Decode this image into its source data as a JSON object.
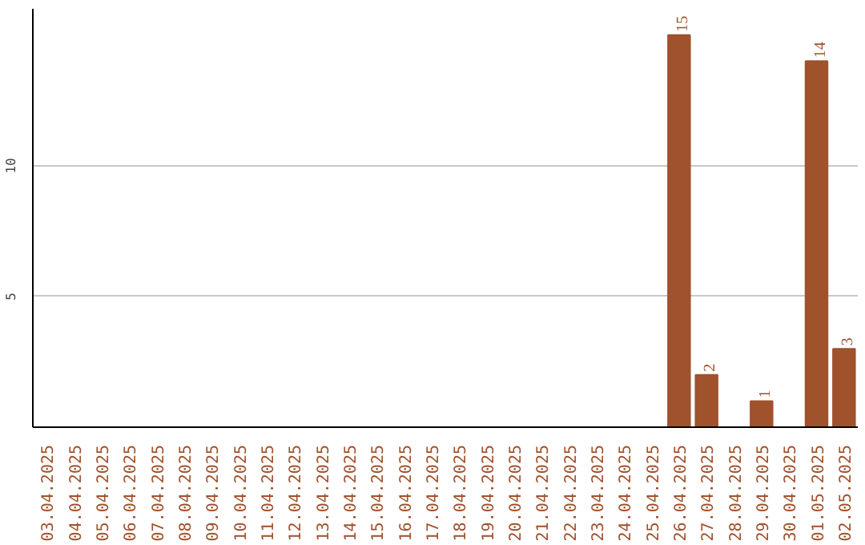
{
  "chart_data": {
    "type": "bar",
    "categories": [
      "03.04.2025",
      "04.04.2025",
      "05.04.2025",
      "06.04.2025",
      "07.04.2025",
      "08.04.2025",
      "09.04.2025",
      "10.04.2025",
      "11.04.2025",
      "12.04.2025",
      "13.04.2025",
      "14.04.2025",
      "15.04.2025",
      "16.04.2025",
      "17.04.2025",
      "18.04.2025",
      "19.04.2025",
      "20.04.2025",
      "21.04.2025",
      "22.04.2025",
      "23.04.2025",
      "24.04.2025",
      "25.04.2025",
      "26.04.2025",
      "27.04.2025",
      "28.04.2025",
      "29.04.2025",
      "30.04.2025",
      "01.05.2025",
      "02.05.2025"
    ],
    "values": [
      0,
      0,
      0,
      0,
      0,
      0,
      0,
      0,
      0,
      0,
      0,
      0,
      0,
      0,
      0,
      0,
      0,
      0,
      0,
      0,
      0,
      0,
      0,
      15,
      2,
      0,
      1,
      0,
      14,
      3
    ],
    "value_labels": [
      null,
      null,
      null,
      null,
      null,
      null,
      null,
      null,
      null,
      null,
      null,
      null,
      null,
      null,
      null,
      null,
      null,
      null,
      null,
      null,
      null,
      null,
      null,
      "15",
      "2",
      null,
      "1",
      null,
      "14",
      "3"
    ],
    "color": "#a0522d",
    "ylim": [
      0,
      16
    ],
    "yticks": [
      5,
      10
    ],
    "grid": "y"
  }
}
